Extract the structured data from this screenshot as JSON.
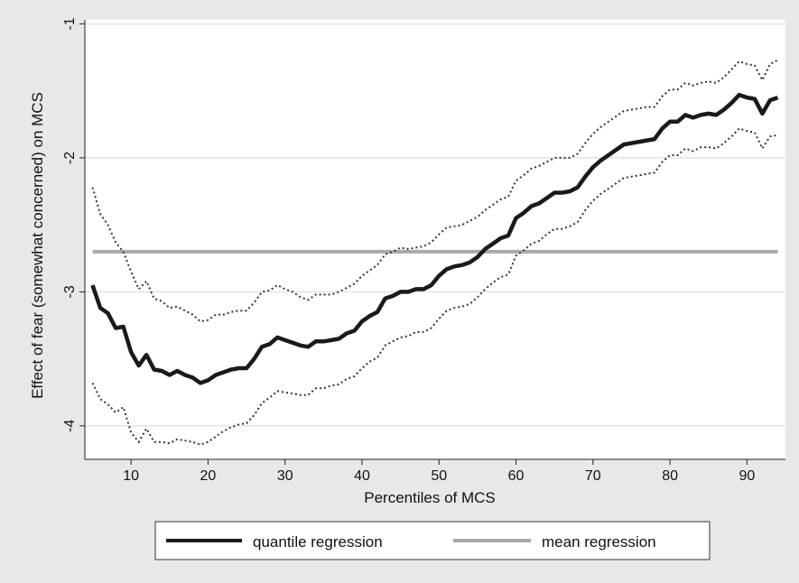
{
  "chart_data": {
    "type": "line",
    "title": "",
    "xlabel": "Percentiles of MCS",
    "ylabel": "Effect of fear (somewhat concerned) on MCS",
    "xlim": [
      4,
      95
    ],
    "ylim": [
      -4.25,
      -0.97
    ],
    "x_ticks": [
      10,
      20,
      30,
      40,
      50,
      60,
      70,
      80,
      90
    ],
    "y_ticks": [
      -4,
      -3,
      -2,
      -1
    ],
    "grid": true,
    "legend_position": "bottom",
    "legend": [
      "quantile regression",
      "mean regression"
    ],
    "colors": {
      "background": "#e8e8e8",
      "plot_area": "#ffffff",
      "quantile": "#1a1a1a",
      "ci": "#333333",
      "mean": "#a8a8a8",
      "grid": "#e3e3e3"
    },
    "series": [
      {
        "name": "quantile regression",
        "style": "solid-thick",
        "points": [
          [
            5,
            -2.95
          ],
          [
            6,
            -3.12
          ],
          [
            7,
            -3.16
          ],
          [
            8,
            -3.27
          ],
          [
            9,
            -3.26
          ],
          [
            10,
            -3.45
          ],
          [
            11,
            -3.55
          ],
          [
            12,
            -3.47
          ],
          [
            13,
            -3.58
          ],
          [
            14,
            -3.59
          ],
          [
            15,
            -3.62
          ],
          [
            16,
            -3.59
          ],
          [
            17,
            -3.62
          ],
          [
            18,
            -3.64
          ],
          [
            19,
            -3.68
          ],
          [
            20,
            -3.66
          ],
          [
            21,
            -3.62
          ],
          [
            22,
            -3.6
          ],
          [
            23,
            -3.58
          ],
          [
            24,
            -3.57
          ],
          [
            25,
            -3.57
          ],
          [
            26,
            -3.5
          ],
          [
            27,
            -3.41
          ],
          [
            28,
            -3.39
          ],
          [
            29,
            -3.34
          ],
          [
            30,
            -3.36
          ],
          [
            31,
            -3.38
          ],
          [
            32,
            -3.4
          ],
          [
            33,
            -3.41
          ],
          [
            34,
            -3.37
          ],
          [
            35,
            -3.37
          ],
          [
            36,
            -3.36
          ],
          [
            37,
            -3.35
          ],
          [
            38,
            -3.31
          ],
          [
            39,
            -3.29
          ],
          [
            40,
            -3.22
          ],
          [
            41,
            -3.18
          ],
          [
            42,
            -3.15
          ],
          [
            43,
            -3.05
          ],
          [
            44,
            -3.03
          ],
          [
            45,
            -3.0
          ],
          [
            46,
            -3.0
          ],
          [
            47,
            -2.98
          ],
          [
            48,
            -2.98
          ],
          [
            49,
            -2.95
          ],
          [
            50,
            -2.88
          ],
          [
            51,
            -2.83
          ],
          [
            52,
            -2.81
          ],
          [
            53,
            -2.8
          ],
          [
            54,
            -2.78
          ],
          [
            55,
            -2.74
          ],
          [
            56,
            -2.68
          ],
          [
            57,
            -2.64
          ],
          [
            58,
            -2.6
          ],
          [
            59,
            -2.58
          ],
          [
            60,
            -2.45
          ],
          [
            61,
            -2.41
          ],
          [
            62,
            -2.36
          ],
          [
            63,
            -2.34
          ],
          [
            64,
            -2.3
          ],
          [
            65,
            -2.26
          ],
          [
            66,
            -2.26
          ],
          [
            67,
            -2.25
          ],
          [
            68,
            -2.22
          ],
          [
            69,
            -2.14
          ],
          [
            70,
            -2.07
          ],
          [
            71,
            -2.02
          ],
          [
            72,
            -1.98
          ],
          [
            73,
            -1.94
          ],
          [
            74,
            -1.9
          ],
          [
            75,
            -1.89
          ],
          [
            76,
            -1.88
          ],
          [
            77,
            -1.87
          ],
          [
            78,
            -1.86
          ],
          [
            79,
            -1.78
          ],
          [
            80,
            -1.73
          ],
          [
            81,
            -1.73
          ],
          [
            82,
            -1.68
          ],
          [
            83,
            -1.7
          ],
          [
            84,
            -1.68
          ],
          [
            85,
            -1.67
          ],
          [
            86,
            -1.68
          ],
          [
            87,
            -1.64
          ],
          [
            88,
            -1.59
          ],
          [
            89,
            -1.53
          ],
          [
            90,
            -1.55
          ],
          [
            91,
            -1.56
          ],
          [
            92,
            -1.67
          ],
          [
            93,
            -1.57
          ],
          [
            94,
            -1.55
          ]
        ]
      },
      {
        "name": "upper bound",
        "style": "dotted",
        "points": [
          [
            5,
            -2.22
          ],
          [
            6,
            -2.42
          ],
          [
            7,
            -2.5
          ],
          [
            8,
            -2.63
          ],
          [
            9,
            -2.7
          ],
          [
            10,
            -2.85
          ],
          [
            11,
            -2.98
          ],
          [
            12,
            -2.92
          ],
          [
            13,
            -3.05
          ],
          [
            14,
            -3.07
          ],
          [
            15,
            -3.12
          ],
          [
            16,
            -3.11
          ],
          [
            17,
            -3.14
          ],
          [
            18,
            -3.17
          ],
          [
            19,
            -3.22
          ],
          [
            20,
            -3.21
          ],
          [
            21,
            -3.17
          ],
          [
            22,
            -3.17
          ],
          [
            23,
            -3.15
          ],
          [
            24,
            -3.14
          ],
          [
            25,
            -3.14
          ],
          [
            26,
            -3.08
          ],
          [
            27,
            -3.0
          ],
          [
            28,
            -2.99
          ],
          [
            29,
            -2.95
          ],
          [
            30,
            -2.98
          ],
          [
            31,
            -3.0
          ],
          [
            32,
            -3.04
          ],
          [
            33,
            -3.06
          ],
          [
            34,
            -3.02
          ],
          [
            35,
            -3.02
          ],
          [
            36,
            -3.02
          ],
          [
            37,
            -3.0
          ],
          [
            38,
            -2.97
          ],
          [
            39,
            -2.94
          ],
          [
            40,
            -2.88
          ],
          [
            41,
            -2.84
          ],
          [
            42,
            -2.8
          ],
          [
            43,
            -2.72
          ],
          [
            44,
            -2.7
          ],
          [
            45,
            -2.67
          ],
          [
            46,
            -2.68
          ],
          [
            47,
            -2.67
          ],
          [
            48,
            -2.66
          ],
          [
            49,
            -2.63
          ],
          [
            50,
            -2.57
          ],
          [
            51,
            -2.52
          ],
          [
            52,
            -2.51
          ],
          [
            53,
            -2.5
          ],
          [
            54,
            -2.47
          ],
          [
            55,
            -2.44
          ],
          [
            56,
            -2.39
          ],
          [
            57,
            -2.35
          ],
          [
            58,
            -2.31
          ],
          [
            59,
            -2.29
          ],
          [
            60,
            -2.17
          ],
          [
            61,
            -2.13
          ],
          [
            62,
            -2.08
          ],
          [
            63,
            -2.06
          ],
          [
            64,
            -2.03
          ],
          [
            65,
            -2.0
          ],
          [
            66,
            -2.0
          ],
          [
            67,
            -2.0
          ],
          [
            68,
            -1.97
          ],
          [
            69,
            -1.89
          ],
          [
            70,
            -1.82
          ],
          [
            71,
            -1.77
          ],
          [
            72,
            -1.73
          ],
          [
            73,
            -1.69
          ],
          [
            74,
            -1.65
          ],
          [
            75,
            -1.64
          ],
          [
            76,
            -1.63
          ],
          [
            77,
            -1.62
          ],
          [
            78,
            -1.62
          ],
          [
            79,
            -1.54
          ],
          [
            80,
            -1.49
          ],
          [
            81,
            -1.49
          ],
          [
            82,
            -1.44
          ],
          [
            83,
            -1.46
          ],
          [
            84,
            -1.44
          ],
          [
            85,
            -1.43
          ],
          [
            86,
            -1.44
          ],
          [
            87,
            -1.4
          ],
          [
            88,
            -1.34
          ],
          [
            89,
            -1.28
          ],
          [
            90,
            -1.3
          ],
          [
            91,
            -1.31
          ],
          [
            92,
            -1.42
          ],
          [
            93,
            -1.3
          ],
          [
            94,
            -1.27
          ]
        ]
      },
      {
        "name": "lower bound",
        "style": "dotted",
        "points": [
          [
            5,
            -3.68
          ],
          [
            6,
            -3.8
          ],
          [
            7,
            -3.84
          ],
          [
            8,
            -3.9
          ],
          [
            9,
            -3.86
          ],
          [
            10,
            -4.05
          ],
          [
            11,
            -4.12
          ],
          [
            12,
            -4.02
          ],
          [
            13,
            -4.12
          ],
          [
            14,
            -4.12
          ],
          [
            15,
            -4.13
          ],
          [
            16,
            -4.1
          ],
          [
            17,
            -4.11
          ],
          [
            18,
            -4.12
          ],
          [
            19,
            -4.14
          ],
          [
            20,
            -4.12
          ],
          [
            21,
            -4.08
          ],
          [
            22,
            -4.04
          ],
          [
            23,
            -4.01
          ],
          [
            24,
            -3.99
          ],
          [
            25,
            -3.98
          ],
          [
            26,
            -3.92
          ],
          [
            27,
            -3.83
          ],
          [
            28,
            -3.79
          ],
          [
            29,
            -3.74
          ],
          [
            30,
            -3.75
          ],
          [
            31,
            -3.76
          ],
          [
            32,
            -3.77
          ],
          [
            33,
            -3.77
          ],
          [
            34,
            -3.72
          ],
          [
            35,
            -3.72
          ],
          [
            36,
            -3.7
          ],
          [
            37,
            -3.69
          ],
          [
            38,
            -3.65
          ],
          [
            39,
            -3.63
          ],
          [
            40,
            -3.57
          ],
          [
            41,
            -3.52
          ],
          [
            42,
            -3.49
          ],
          [
            43,
            -3.4
          ],
          [
            44,
            -3.37
          ],
          [
            45,
            -3.34
          ],
          [
            46,
            -3.33
          ],
          [
            47,
            -3.3
          ],
          [
            48,
            -3.3
          ],
          [
            49,
            -3.27
          ],
          [
            50,
            -3.2
          ],
          [
            51,
            -3.14
          ],
          [
            52,
            -3.12
          ],
          [
            53,
            -3.11
          ],
          [
            54,
            -3.09
          ],
          [
            55,
            -3.04
          ],
          [
            56,
            -2.98
          ],
          [
            57,
            -2.93
          ],
          [
            58,
            -2.89
          ],
          [
            59,
            -2.87
          ],
          [
            60,
            -2.73
          ],
          [
            61,
            -2.69
          ],
          [
            62,
            -2.64
          ],
          [
            63,
            -2.62
          ],
          [
            64,
            -2.57
          ],
          [
            65,
            -2.53
          ],
          [
            66,
            -2.53
          ],
          [
            67,
            -2.51
          ],
          [
            68,
            -2.48
          ],
          [
            69,
            -2.39
          ],
          [
            70,
            -2.32
          ],
          [
            71,
            -2.27
          ],
          [
            72,
            -2.23
          ],
          [
            73,
            -2.19
          ],
          [
            74,
            -2.15
          ],
          [
            75,
            -2.14
          ],
          [
            76,
            -2.13
          ],
          [
            77,
            -2.12
          ],
          [
            78,
            -2.11
          ],
          [
            79,
            -2.03
          ],
          [
            80,
            -1.98
          ],
          [
            81,
            -1.98
          ],
          [
            82,
            -1.93
          ],
          [
            83,
            -1.95
          ],
          [
            84,
            -1.92
          ],
          [
            85,
            -1.92
          ],
          [
            86,
            -1.93
          ],
          [
            87,
            -1.89
          ],
          [
            88,
            -1.84
          ],
          [
            89,
            -1.78
          ],
          [
            90,
            -1.8
          ],
          [
            91,
            -1.81
          ],
          [
            92,
            -1.93
          ],
          [
            93,
            -1.84
          ],
          [
            94,
            -1.83
          ]
        ]
      },
      {
        "name": "mean regression",
        "style": "solid-gray",
        "points": [
          [
            5,
            -2.7
          ],
          [
            94,
            -2.7
          ]
        ]
      }
    ]
  }
}
